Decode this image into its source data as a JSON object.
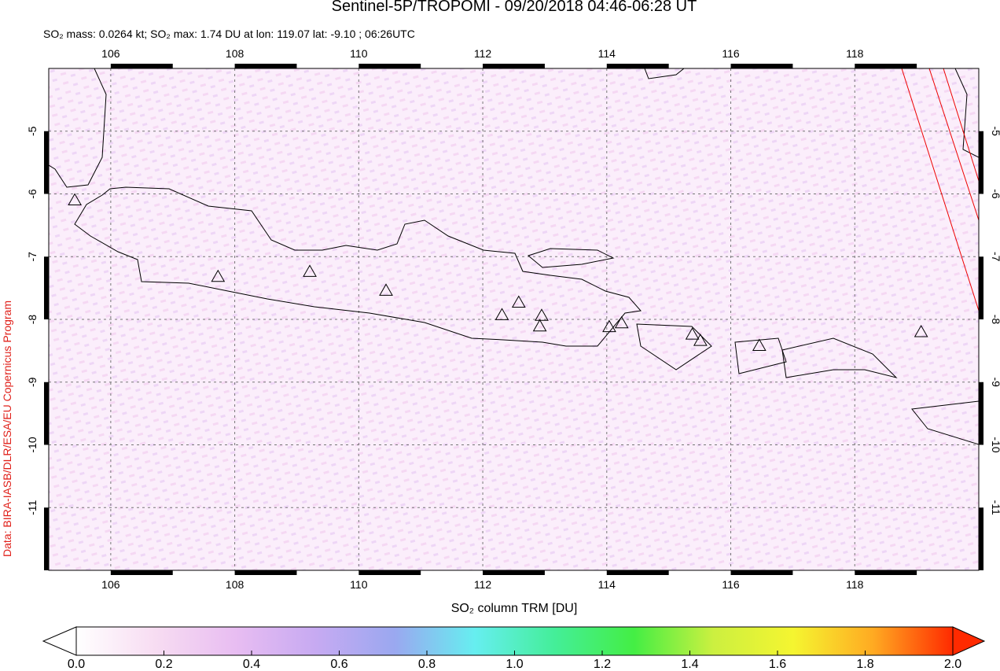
{
  "chart_data": {
    "type": "map",
    "title": "Sentinel-5P/TROPOMI - 09/20/2018 04:46-06:28 UT",
    "subtitle": "SO₂ mass: 0.0264 kt; SO₂ max: 1.74 DU at lon: 119.07 lat: -9.10 ; 06:26UTC",
    "credit": "Data: BIRA-IASB/DLR/ESA/EU Copernicus Program",
    "xlim": [
      105,
      120
    ],
    "ylim": [
      -12,
      -4
    ],
    "xticks": [
      106,
      108,
      110,
      112,
      114,
      116,
      118
    ],
    "yticks": [
      -5,
      -6,
      -7,
      -8,
      -9,
      -10,
      -11
    ],
    "grid": true,
    "volcanoes": {
      "lon": [
        105.42,
        107.73,
        109.21,
        110.44,
        112.31,
        112.58,
        112.95,
        112.92,
        114.04,
        114.24,
        115.38,
        115.51,
        116.46,
        119.07
      ],
      "lat": [
        -6.1,
        -7.32,
        -7.24,
        -7.54,
        -7.93,
        -7.73,
        -7.94,
        -8.11,
        -8.12,
        -8.06,
        -8.24,
        -8.34,
        -8.42,
        -8.2
      ]
    },
    "colorbar": {
      "label": "SO₂ column TRM [DU]",
      "lim": [
        0,
        2
      ],
      "ticks": [
        {
          "value": 0,
          "label": "0.0"
        },
        0.2,
        0.4,
        0.6,
        0.8,
        {
          "value": 1,
          "label": "1.0"
        },
        1.2,
        1.4,
        1.6,
        1.8,
        {
          "value": 2,
          "label": "2.0"
        }
      ],
      "colors": [
        "#ffffff",
        "#f7dcf2",
        "#e8bdf2",
        "#c7aaf2",
        "#9aa8f0",
        "#66eef0",
        "#44ee99",
        "#44ee44",
        "#ccf040",
        "#f5f530",
        "#ffaa22",
        "#ff2a00"
      ]
    }
  }
}
